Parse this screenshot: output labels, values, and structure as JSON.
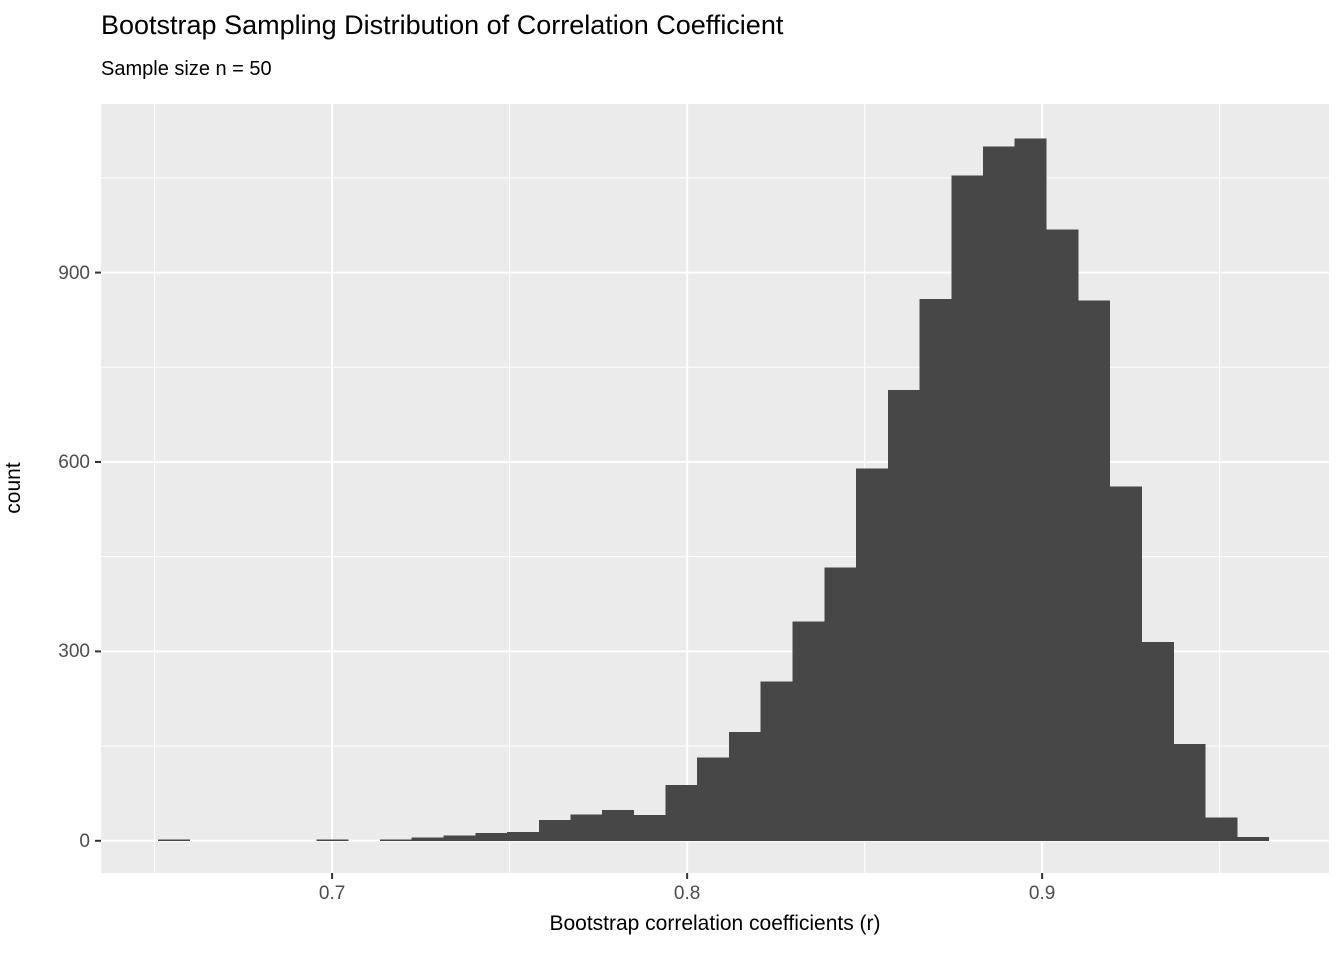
{
  "colors": {
    "bar": "#474747",
    "panel_background": "#EBEBEB",
    "grid": "#FFFFFF",
    "tick_mark": "#333333",
    "tick_text": "#4D4D4D",
    "title_text": "#000000"
  },
  "chart_data": {
    "type": "bar",
    "subtype": "histogram",
    "title": "Bootstrap Sampling Distribution of Correlation Coefficient",
    "subtitle": "Sample size n = 50",
    "xlabel": "Bootstrap correlation coefficients (r)",
    "ylabel": "count",
    "legend_position": "none",
    "grid": true,
    "binwidth": 0.008938,
    "bin_centers": [
      0.6554,
      0.6643,
      0.6733,
      0.6822,
      0.6911,
      0.7001,
      0.709,
      0.718,
      0.7269,
      0.7358,
      0.7448,
      0.7537,
      0.7627,
      0.7716,
      0.7805,
      0.7895,
      0.7984,
      0.8073,
      0.8163,
      0.8252,
      0.8342,
      0.8431,
      0.852,
      0.861,
      0.8699,
      0.8789,
      0.8878,
      0.8967,
      0.9057,
      0.9146,
      0.9235,
      0.9325,
      0.9414,
      0.9504,
      0.9593
    ],
    "counts": [
      2,
      0,
      0,
      0,
      0,
      2,
      0,
      2,
      5,
      8,
      12,
      14,
      33,
      42,
      49,
      41,
      88,
      132,
      172,
      252,
      347,
      433,
      590,
      714,
      858,
      1054,
      1100,
      1112,
      968,
      856,
      561,
      315,
      153,
      37,
      6
    ],
    "x_ticks": {
      "values": [
        0.7,
        0.8,
        0.9
      ],
      "labels": [
        "0.7",
        "0.8",
        "0.9"
      ]
    },
    "x_minor": [
      0.65,
      0.75,
      0.85,
      0.95
    ],
    "y_ticks": {
      "values": [
        0,
        300,
        600,
        900
      ],
      "labels": [
        "0",
        "300",
        "600",
        "900"
      ]
    },
    "y_minor": [
      150,
      450,
      750,
      1050
    ],
    "xlim": [
      0.6349,
      0.9808
    ],
    "ylim": [
      -51,
      1167
    ]
  }
}
